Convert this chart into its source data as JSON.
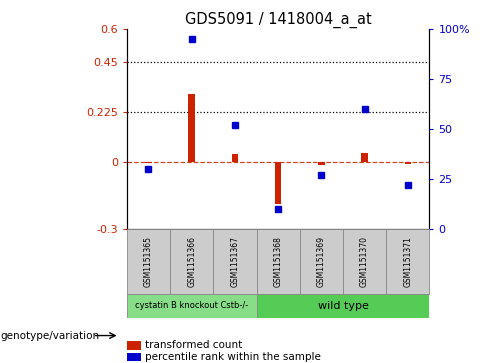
{
  "title": "GDS5091 / 1418004_a_at",
  "samples": [
    "GSM1151365",
    "GSM1151366",
    "GSM1151367",
    "GSM1151368",
    "GSM1151369",
    "GSM1151370",
    "GSM1151371"
  ],
  "transformed_count": [
    -0.005,
    0.305,
    0.035,
    -0.19,
    -0.015,
    0.04,
    -0.01
  ],
  "percentile_rank": [
    30,
    95,
    52,
    10,
    27,
    60,
    22
  ],
  "ylim_left": [
    -0.3,
    0.6
  ],
  "ylim_right": [
    0,
    100
  ],
  "yticks_left": [
    -0.3,
    0,
    0.225,
    0.45,
    0.6
  ],
  "yticks_right": [
    0,
    25,
    50,
    75,
    100
  ],
  "ytick_labels_left": [
    "-0.3",
    "0",
    "0.225",
    "0.45",
    "0.6"
  ],
  "ytick_labels_right": [
    "0",
    "25",
    "50",
    "75",
    "100%"
  ],
  "hlines": [
    0.225,
    0.45
  ],
  "dashed_hline": 0.0,
  "group1_label": "cystatin B knockout Cstb-/-",
  "group2_label": "wild type",
  "group1_count": 3,
  "group2_count": 4,
  "bar_color": "#cc2200",
  "dot_color": "#0000cc",
  "group1_color": "#88dd88",
  "group2_color": "#55cc55",
  "bg_color": "#cccccc",
  "legend_bar_label": "transformed count",
  "legend_dot_label": "percentile rank within the sample",
  "genotype_label": "genotype/variation"
}
